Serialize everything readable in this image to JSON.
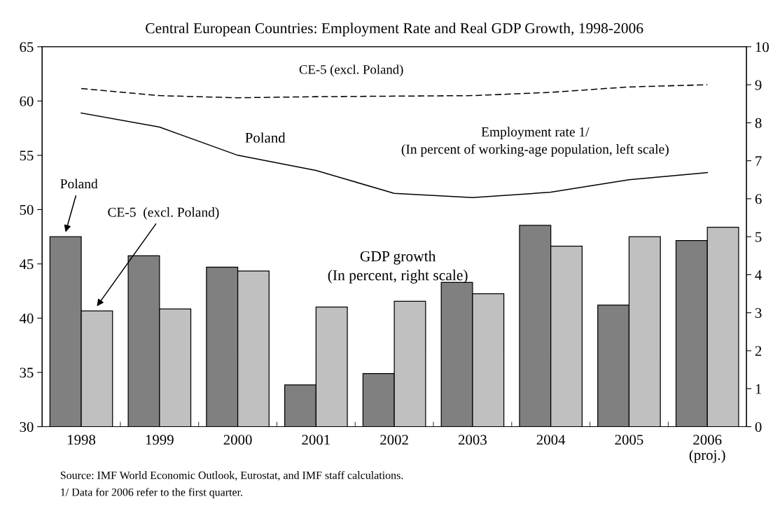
{
  "chart_data": {
    "type": "bar",
    "title": "Central European Countries: Employment Rate and Real GDP Growth, 1998-2006",
    "categories": [
      "1998",
      "1999",
      "2000",
      "2001",
      "2002",
      "2003",
      "2004",
      "2005",
      "2006\n(proj.)"
    ],
    "series": [
      {
        "name": "Poland",
        "axis": "y2",
        "color": "#808080",
        "values": [
          5.0,
          4.5,
          4.2,
          1.1,
          1.4,
          3.8,
          5.3,
          3.2,
          4.9
        ]
      },
      {
        "name": "CE-5  (excl. Poland)",
        "axis": "y2",
        "color": "#c0c0c0",
        "values": [
          3.05,
          3.1,
          4.1,
          3.15,
          3.3,
          3.5,
          4.75,
          5.0,
          5.25
        ]
      },
      {
        "name": "Poland",
        "type": "line",
        "color": "#000000",
        "line_style": "solid",
        "values": [
          58.9,
          57.6,
          55.0,
          53.6,
          51.5,
          51.1,
          51.6,
          52.75,
          53.4
        ]
      },
      {
        "name": "CE-5 (excl. Poland)",
        "type": "line",
        "color": "#000000",
        "line_style": "dashed",
        "values": [
          61.15,
          60.5,
          60.3,
          60.4,
          60.45,
          60.5,
          60.8,
          61.3,
          61.5
        ]
      }
    ],
    "ylim": [
      30,
      65
    ],
    "yticks": [
      30,
      35,
      40,
      45,
      50,
      55,
      60,
      65
    ],
    "y2lim": [
      0,
      10
    ],
    "y2ticks": [
      0,
      1,
      2,
      3,
      4,
      5,
      6,
      7,
      8,
      9,
      10
    ],
    "grid": false,
    "legend": false,
    "marker": "none",
    "annotations": [
      "Employment rate 1/\n(In percent of working-age population, left scale)",
      "GDP growth\n(In percent, right scale)",
      "Source: IMF World Economic Outlook, Eurostat, and IMF staff calculations.",
      "1/ Data for 2006 refer to the first quarter."
    ]
  }
}
